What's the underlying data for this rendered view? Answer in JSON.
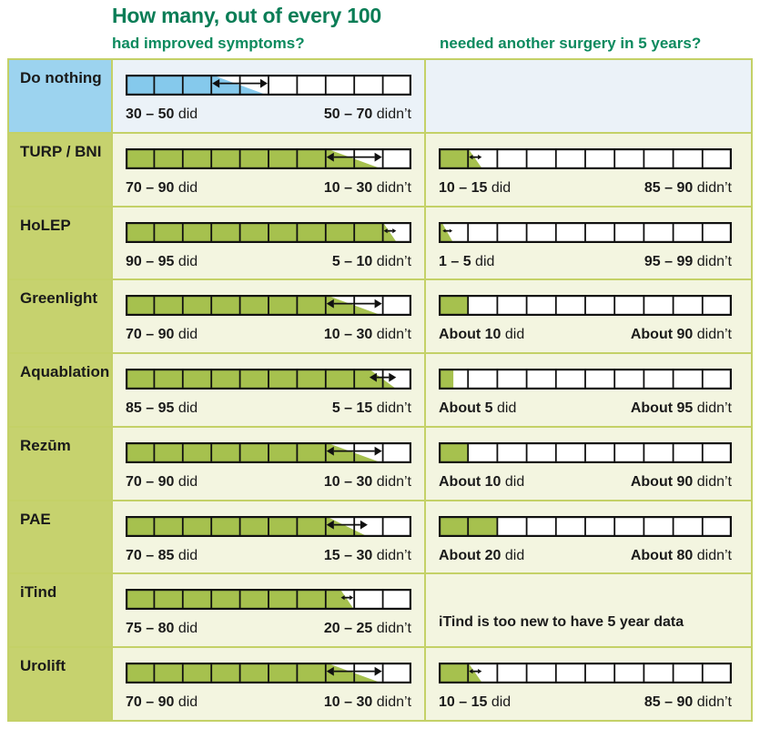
{
  "header": {
    "title": "How many, out of every 100",
    "col1_subtitle": "had improved symptoms?",
    "col2_subtitle": "needed another surgery in 5 years?"
  },
  "colors": {
    "header_green": "#0a7d56",
    "subheader_green": "#0c8a5e",
    "green_label_bg": "#c6d26e",
    "green_cell_bg": "#f3f5e0",
    "green_fill": "#a6c14e",
    "blue_label_bg": "#9cd3ef",
    "blue_cell_bg": "#ebf2f8",
    "blue_fill": "#85c9ec",
    "grid_line": "#c4d167",
    "bar_stroke": "#111111",
    "text": "#1a1a1a"
  },
  "chart_data": {
    "type": "icon-array-table",
    "title": "How many, out of every 100",
    "columns": [
      "had improved symptoms?",
      "needed another surgery in 5 years?"
    ],
    "denominator": 100,
    "segments_per_bar": 10,
    "rows": [
      {
        "label": "Do nothing",
        "theme": "blue",
        "improved": {
          "bar": "wedge",
          "low": 30,
          "high": 50,
          "arrow": true,
          "did": "30 – 50",
          "did_word": "did",
          "didnt": "50 – 70",
          "didnt_word": "didn’t"
        },
        "surgery": {
          "bar": "none"
        }
      },
      {
        "label": "TURP / BNI",
        "theme": "green",
        "improved": {
          "bar": "wedge",
          "low": 70,
          "high": 90,
          "arrow": true,
          "did": "70 – 90",
          "did_word": "did",
          "didnt": "10 – 30",
          "didnt_word": "didn’t"
        },
        "surgery": {
          "bar": "wedge",
          "low": 10,
          "high": 15,
          "arrow": true,
          "did": "10 – 15",
          "did_word": "did",
          "didnt": "85 – 90",
          "didnt_word": "didn’t"
        }
      },
      {
        "label": "HoLEP",
        "theme": "green",
        "improved": {
          "bar": "wedge",
          "low": 90,
          "high": 95,
          "arrow": true,
          "did": "90 – 95",
          "did_word": "did",
          "didnt": "5 – 10",
          "didnt_word": "didn’t"
        },
        "surgery": {
          "bar": "wedge",
          "low": 1,
          "high": 5,
          "arrow": true,
          "did": "1 – 5",
          "did_word": "did",
          "didnt": "95 – 99",
          "didnt_word": "didn’t"
        }
      },
      {
        "label": "Greenlight",
        "theme": "green",
        "improved": {
          "bar": "wedge",
          "low": 70,
          "high": 90,
          "arrow": true,
          "did": "70 – 90",
          "did_word": "did",
          "didnt": "10 – 30",
          "didnt_word": "didn’t"
        },
        "surgery": {
          "bar": "flat",
          "value": 10,
          "did": "About 10",
          "did_word": "did",
          "didnt": "About 90",
          "didnt_word": "didn’t"
        }
      },
      {
        "label": "Aquablation",
        "theme": "green",
        "improved": {
          "bar": "wedge",
          "low": 85,
          "high": 95,
          "arrow": true,
          "did": "85 – 95",
          "did_word": "did",
          "didnt": "5 – 15",
          "didnt_word": "didn’t"
        },
        "surgery": {
          "bar": "flat",
          "value": 5,
          "did": "About 5",
          "did_word": "did",
          "didnt": "About 95",
          "didnt_word": "didn’t"
        }
      },
      {
        "label": "Rezūm",
        "theme": "green",
        "improved": {
          "bar": "wedge",
          "low": 70,
          "high": 90,
          "arrow": true,
          "did": "70 – 90",
          "did_word": "did",
          "didnt": "10 – 30",
          "didnt_word": "didn’t"
        },
        "surgery": {
          "bar": "flat",
          "value": 10,
          "did": "About 10",
          "did_word": "did",
          "didnt": "About 90",
          "didnt_word": "didn’t"
        }
      },
      {
        "label": "PAE",
        "theme": "green",
        "improved": {
          "bar": "wedge",
          "low": 70,
          "high": 85,
          "arrow": true,
          "did": "70 – 85",
          "did_word": "did",
          "didnt": "15 – 30",
          "didnt_word": "didn’t"
        },
        "surgery": {
          "bar": "flat",
          "value": 20,
          "did": "About 20",
          "did_word": "did",
          "didnt": "About 80",
          "didnt_word": "didn’t"
        }
      },
      {
        "label": "iTind",
        "theme": "green",
        "improved": {
          "bar": "wedge",
          "low": 75,
          "high": 80,
          "arrow": true,
          "did": "75 – 80",
          "did_word": "did",
          "didnt": "20 – 25",
          "didnt_word": "didn’t"
        },
        "surgery": {
          "bar": "note",
          "note": "iTind is too new to have 5 year data"
        }
      },
      {
        "label": "Urolift",
        "theme": "green",
        "improved": {
          "bar": "wedge",
          "low": 70,
          "high": 90,
          "arrow": true,
          "did": "70 – 90",
          "did_word": "did",
          "didnt": "10 – 30",
          "didnt_word": "didn’t"
        },
        "surgery": {
          "bar": "wedge",
          "low": 10,
          "high": 15,
          "arrow": true,
          "did": "10 – 15",
          "did_word": "did",
          "didnt": "85 – 90",
          "didnt_word": "didn’t"
        }
      }
    ]
  }
}
